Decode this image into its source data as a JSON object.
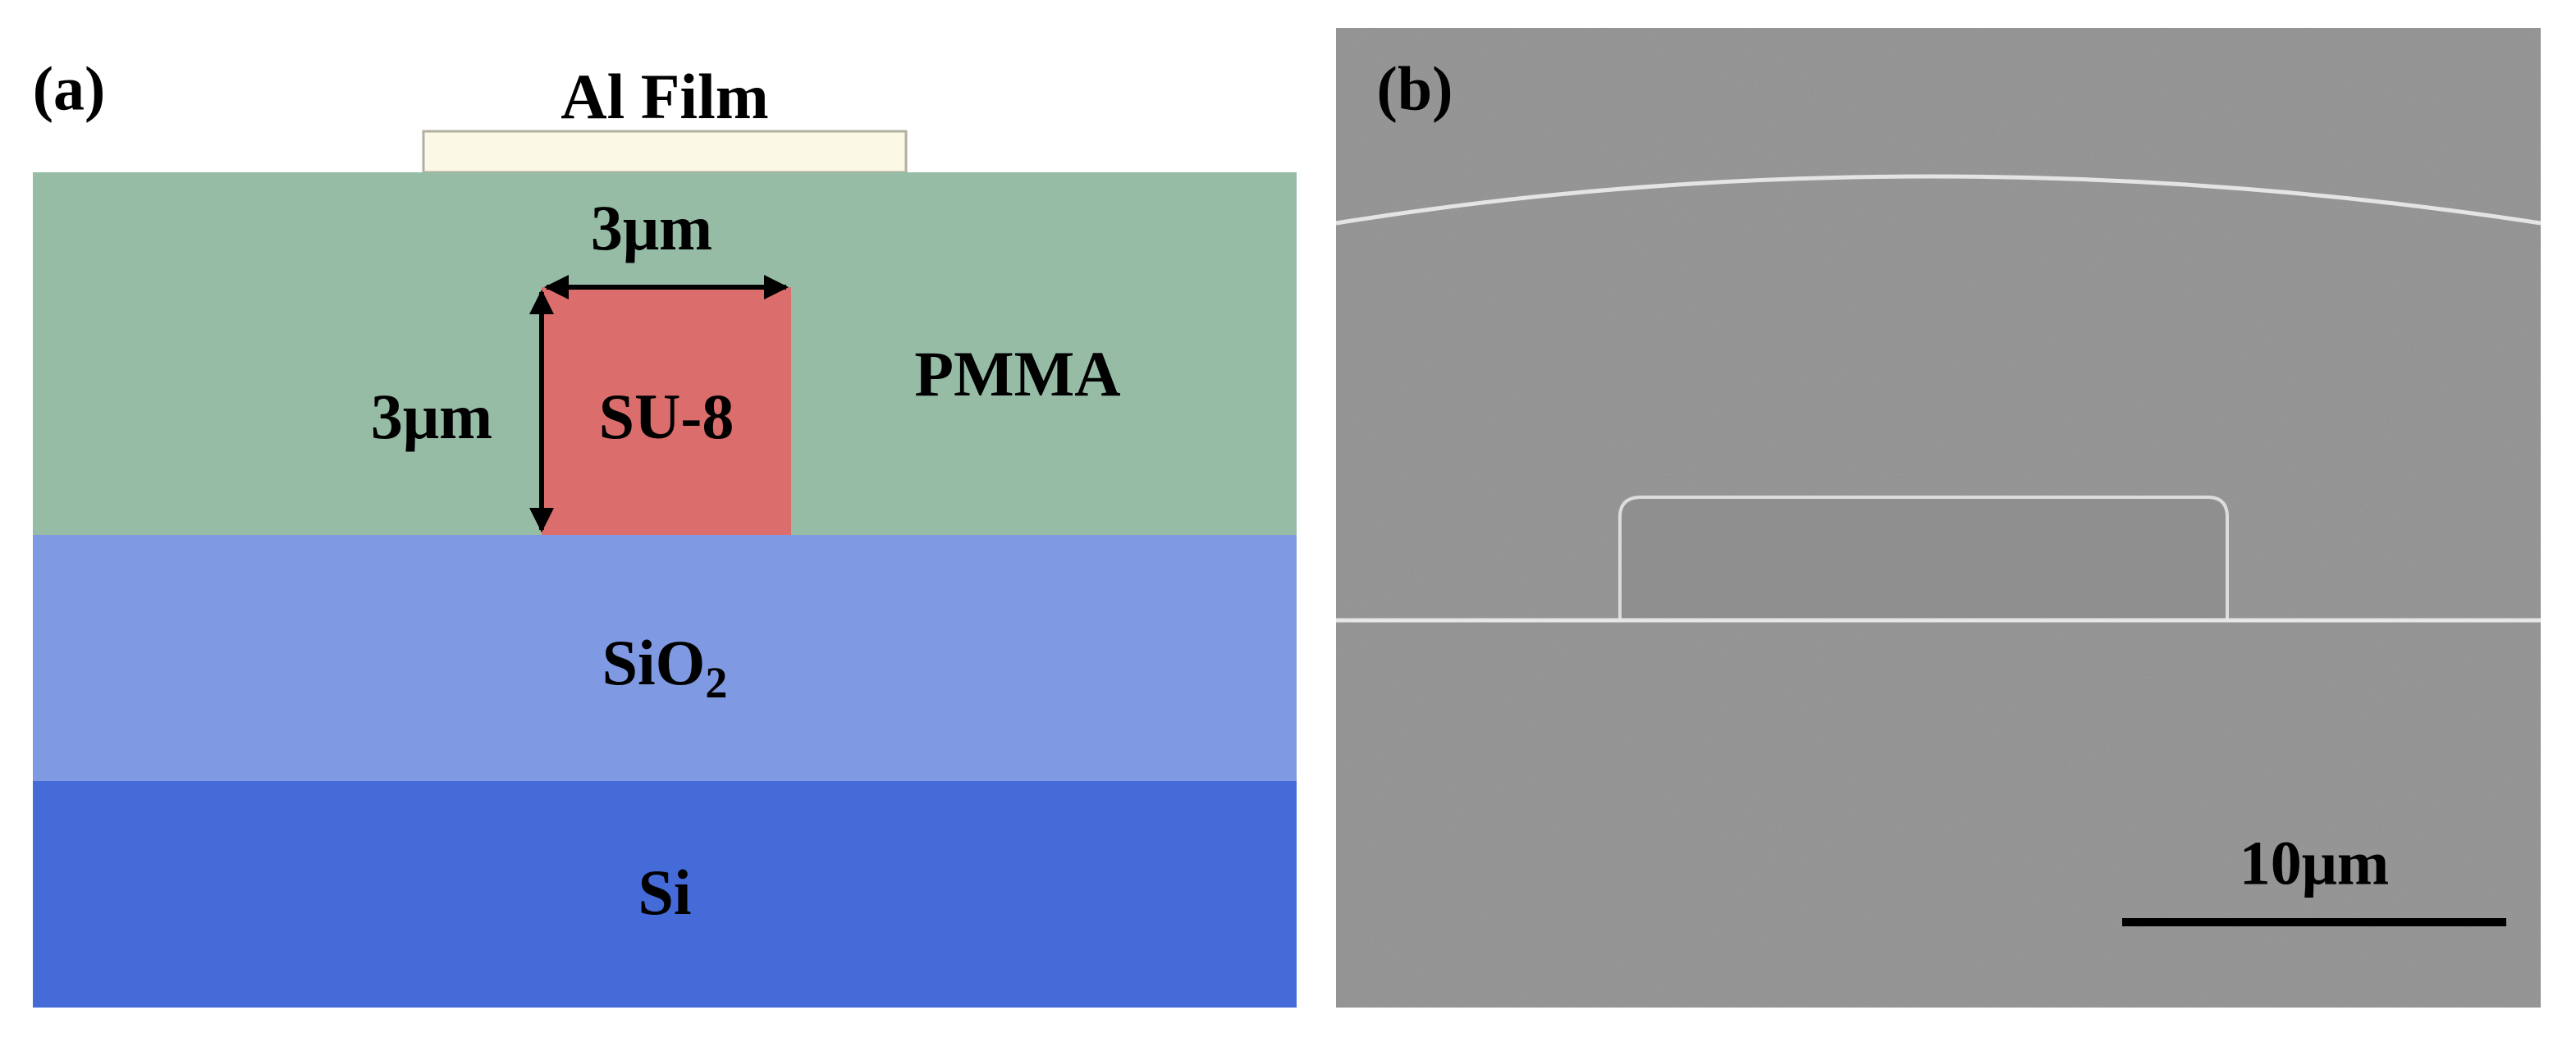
{
  "panel_a": {
    "label": "(a)",
    "al_film": "Al Film",
    "width_label": "3μm",
    "height_label": "3μm",
    "core": "SU-8",
    "cladding": "PMMA",
    "buffer": {
      "text": "SiO",
      "subscript": "2"
    },
    "substrate": "Si"
  },
  "panel_b": {
    "label": "(b)",
    "scale_bar": "10μm"
  }
}
